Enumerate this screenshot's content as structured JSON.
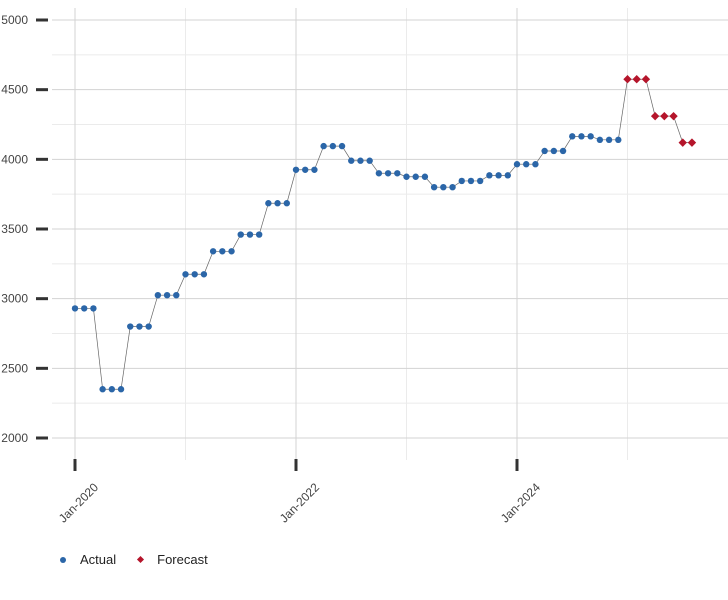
{
  "chart_data": {
    "type": "line",
    "title": "",
    "xlabel": "",
    "ylabel": "",
    "ylim": [
      2000,
      5000
    ],
    "y_ticks": [
      2000,
      2500,
      3000,
      3500,
      4000,
      4500,
      5000
    ],
    "y_tick_labels": [
      "2000",
      "2500",
      "3000",
      "3500",
      "4000",
      "4500",
      "5000"
    ],
    "x_ticks": [
      "2020-01",
      "2022-01",
      "2024-01"
    ],
    "x_tick_labels": [
      "Jan-2020",
      "Jan-2022",
      "Jan-2024"
    ],
    "xlim": [
      "2020-01",
      "2025-10"
    ],
    "grid": true,
    "legend_position": "bottom-left",
    "series": [
      {
        "name": "Actual",
        "color": "#2b66a8",
        "marker": "circle",
        "points": [
          [
            "2020-01",
            2930
          ],
          [
            "2020-02",
            2930
          ],
          [
            "2020-03",
            2930
          ],
          [
            "2020-04",
            2350
          ],
          [
            "2020-05",
            2350
          ],
          [
            "2020-06",
            2350
          ],
          [
            "2020-07",
            2800
          ],
          [
            "2020-08",
            2800
          ],
          [
            "2020-09",
            2800
          ],
          [
            "2020-10",
            3025
          ],
          [
            "2020-11",
            3025
          ],
          [
            "2020-12",
            3025
          ],
          [
            "2021-01",
            3175
          ],
          [
            "2021-02",
            3175
          ],
          [
            "2021-03",
            3175
          ],
          [
            "2021-04",
            3340
          ],
          [
            "2021-05",
            3340
          ],
          [
            "2021-06",
            3340
          ],
          [
            "2021-07",
            3460
          ],
          [
            "2021-08",
            3460
          ],
          [
            "2021-09",
            3460
          ],
          [
            "2021-10",
            3685
          ],
          [
            "2021-11",
            3685
          ],
          [
            "2021-12",
            3685
          ],
          [
            "2022-01",
            3925
          ],
          [
            "2022-02",
            3925
          ],
          [
            "2022-03",
            3925
          ],
          [
            "2022-04",
            4095
          ],
          [
            "2022-05",
            4095
          ],
          [
            "2022-06",
            4095
          ],
          [
            "2022-07",
            3990
          ],
          [
            "2022-08",
            3990
          ],
          [
            "2022-09",
            3990
          ],
          [
            "2022-10",
            3900
          ],
          [
            "2022-11",
            3900
          ],
          [
            "2022-12",
            3900
          ],
          [
            "2023-01",
            3875
          ],
          [
            "2023-02",
            3875
          ],
          [
            "2023-03",
            3875
          ],
          [
            "2023-04",
            3800
          ],
          [
            "2023-05",
            3800
          ],
          [
            "2023-06",
            3800
          ],
          [
            "2023-07",
            3845
          ],
          [
            "2023-08",
            3845
          ],
          [
            "2023-09",
            3845
          ],
          [
            "2023-10",
            3885
          ],
          [
            "2023-11",
            3885
          ],
          [
            "2023-12",
            3885
          ],
          [
            "2024-01",
            3965
          ],
          [
            "2024-02",
            3965
          ],
          [
            "2024-03",
            3965
          ],
          [
            "2024-04",
            4060
          ],
          [
            "2024-05",
            4060
          ],
          [
            "2024-06",
            4060
          ],
          [
            "2024-07",
            4165
          ],
          [
            "2024-08",
            4165
          ],
          [
            "2024-09",
            4165
          ],
          [
            "2024-10",
            4140
          ],
          [
            "2024-11",
            4140
          ],
          [
            "2024-12",
            4140
          ]
        ]
      },
      {
        "name": "Forecast",
        "color": "#b5152b",
        "marker": "diamond",
        "points": [
          [
            "2025-01",
            4575
          ],
          [
            "2025-02",
            4575
          ],
          [
            "2025-03",
            4575
          ],
          [
            "2025-04",
            4310
          ],
          [
            "2025-05",
            4310
          ],
          [
            "2025-06",
            4310
          ],
          [
            "2025-07",
            4120
          ],
          [
            "2025-08",
            4120
          ]
        ]
      }
    ]
  }
}
